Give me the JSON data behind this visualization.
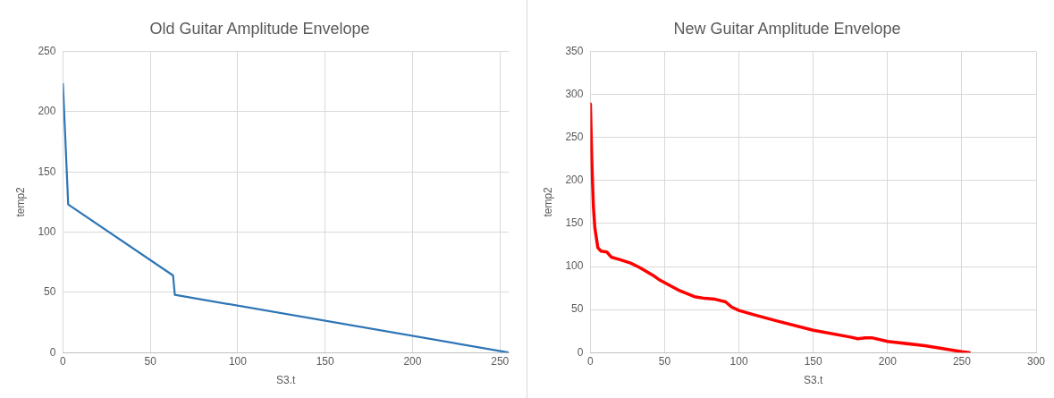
{
  "chart_data": [
    {
      "type": "line",
      "title": "Old Guitar Amplitude Envelope",
      "xlabel": "S3.t",
      "ylabel": "temp2",
      "x": [
        0,
        3,
        63,
        64,
        255
      ],
      "series": [
        {
          "color": "#2e75b6",
          "values": [
            223,
            123,
            64,
            48,
            0
          ]
        }
      ],
      "xlim": [
        0,
        255
      ],
      "xticks": [
        0,
        50,
        100,
        150,
        200,
        250
      ],
      "ylim": [
        0,
        250
      ],
      "yticks": [
        0,
        50,
        100,
        150,
        200,
        250
      ],
      "grid": true,
      "marker": "none"
    },
    {
      "type": "line",
      "title": "New Guitar Amplitude Envelope",
      "xlabel": "S3.t",
      "ylabel": "temp2",
      "x": [
        0,
        1,
        2,
        3,
        5,
        7,
        11,
        14,
        20,
        27,
        33,
        42,
        46,
        60,
        70,
        77,
        84,
        91,
        95,
        100,
        110,
        125,
        150,
        175,
        180,
        185,
        190,
        200,
        225,
        250,
        255
      ],
      "series": [
        {
          "color": "#ff0000",
          "values": [
            289,
            220,
            170,
            145,
            122,
            118,
            117,
            111,
            108,
            104,
            99,
            90,
            85,
            72,
            65,
            63,
            62,
            59,
            53,
            49,
            44,
            37,
            26,
            18,
            16,
            17,
            17,
            13,
            8,
            1,
            0
          ]
        }
      ],
      "xlim": [
        0,
        300
      ],
      "xticks": [
        0,
        50,
        100,
        150,
        200,
        250,
        300
      ],
      "ylim": [
        0,
        350
      ],
      "yticks": [
        0,
        50,
        100,
        150,
        200,
        250,
        300,
        350
      ],
      "grid": true,
      "marker": "none"
    }
  ]
}
